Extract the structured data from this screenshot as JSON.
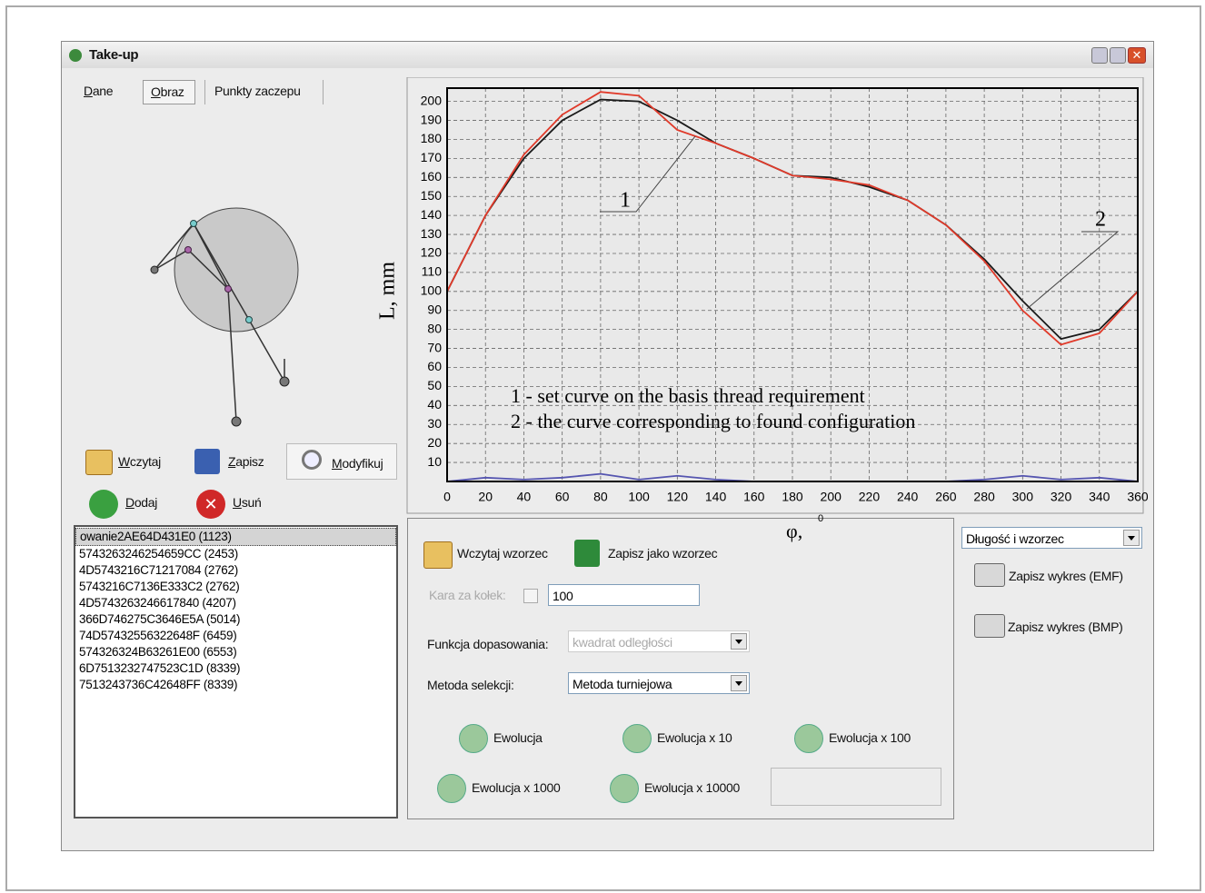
{
  "window": {
    "title": "Take-up"
  },
  "tabs": [
    "Dane",
    "Obraz",
    "Punkty zaczepu"
  ],
  "toolbar": {
    "load": "Wczytaj",
    "save": "Zapisz",
    "modify": "Modyfikuj",
    "add": "Dodaj",
    "remove": "Usuń"
  },
  "list": [
    "owanie2AE64D431E0  (1123)",
    "5743263246254659CC  (2453)",
    "4D5743216C71217084  (2762)",
    "5743216C7136E333C2  (2762)",
    "4D5743263246617840  (4207)",
    "366D746275C3646E5A  (5014)",
    "74D57432556322648F  (6459)",
    "574326324B63261E00  (6553)",
    "6D7513232747523C1D  (8339)",
    "7513243736C42648FF  (8339)"
  ],
  "pattern": {
    "load": "Wczytaj wzorzec",
    "save": "Zapisz jako wzorzec"
  },
  "settings": {
    "penalty_label": "Kara za kołek:",
    "penalty_value": 100,
    "fit_label": "Funkcja dopasowania:",
    "fit_value": "kwadrat odległości",
    "selection_label": "Metoda selekcji:",
    "selection_value": "Metoda turniejowa"
  },
  "evolution": [
    "Ewolucja",
    "Ewolucja x 10",
    "Ewolucja x 100",
    "Ewolucja x 1000",
    "Ewolucja x 10000"
  ],
  "right": {
    "view": "Długość i wzorzec",
    "save_emf": "Zapisz wykres (EMF)",
    "save_bmp": "Zapisz wykres (BMP)"
  },
  "chart_data": {
    "type": "line",
    "x_label": "φ,",
    "x_label_sup": "0",
    "y_label": "L, mm",
    "annotations": [
      "1",
      "2",
      "1 - set curve on the basis thread requirement",
      "2 - the curve corresponding to found configuration"
    ],
    "x": [
      0,
      20,
      40,
      60,
      80,
      100,
      120,
      140,
      160,
      180,
      200,
      220,
      240,
      260,
      280,
      300,
      320,
      340,
      360
    ],
    "series": [
      {
        "color": "#1a1a1a",
        "values": [
          100,
          140,
          170,
          190,
          201,
          200,
          190,
          178,
          170,
          161,
          160,
          155,
          148,
          135,
          117,
          95,
          75,
          80,
          100
        ]
      },
      {
        "color": "#e03a2a",
        "values": [
          100,
          140,
          172,
          193,
          205,
          203,
          185,
          178,
          170,
          161,
          159,
          156,
          148,
          135,
          116,
          90,
          72,
          78,
          100
        ]
      },
      {
        "color": "#5555b0",
        "values": [
          0,
          2,
          1,
          2,
          4,
          1,
          3,
          1,
          0,
          0,
          0,
          0,
          0,
          0,
          1,
          3,
          1,
          2,
          0
        ]
      }
    ],
    "xlim": [
      0,
      360
    ],
    "xticks": [
      0,
      20,
      40,
      60,
      80,
      100,
      120,
      140,
      160,
      180,
      200,
      220,
      240,
      260,
      280,
      300,
      320,
      340,
      360
    ],
    "ylim": [
      0,
      207
    ],
    "yticks": [
      10,
      20,
      30,
      40,
      50,
      60,
      70,
      80,
      90,
      100,
      110,
      120,
      130,
      140,
      150,
      160,
      170,
      180,
      190,
      200
    ],
    "grid": true
  }
}
